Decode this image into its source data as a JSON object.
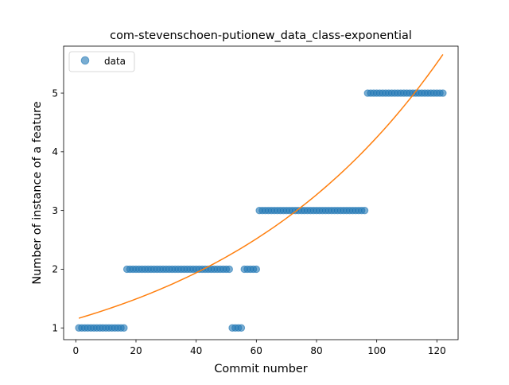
{
  "chart_data": {
    "type": "scatter",
    "title": "com-stevenschoen-putionew_data_class-exponential",
    "xlabel": "Commit number",
    "ylabel": "Number of instance of a feature",
    "xlim": [
      -4.05,
      127.05
    ],
    "ylim": [
      0.8,
      5.8
    ],
    "xticks": [
      0,
      20,
      40,
      60,
      80,
      100,
      120
    ],
    "yticks": [
      1,
      2,
      3,
      4,
      5
    ],
    "legend": {
      "position": "top-left",
      "entries": [
        "data"
      ]
    },
    "grid": false,
    "colors": {
      "data": "#1f77b4",
      "fit": "#ff7f0e"
    },
    "series": [
      {
        "name": "data",
        "kind": "scatter",
        "x": [
          1,
          2,
          3,
          4,
          5,
          6,
          7,
          8,
          9,
          10,
          11,
          12,
          13,
          14,
          15,
          16,
          17,
          18,
          19,
          20,
          21,
          22,
          23,
          24,
          25,
          26,
          27,
          28,
          29,
          30,
          31,
          32,
          33,
          34,
          35,
          36,
          37,
          38,
          39,
          40,
          41,
          42,
          43,
          44,
          45,
          46,
          47,
          48,
          49,
          50,
          51,
          52,
          53,
          54,
          55,
          56,
          57,
          58,
          59,
          60,
          61,
          62,
          63,
          64,
          65,
          66,
          67,
          68,
          69,
          70,
          71,
          72,
          73,
          74,
          75,
          76,
          77,
          78,
          79,
          80,
          81,
          82,
          83,
          84,
          85,
          86,
          87,
          88,
          89,
          90,
          91,
          92,
          93,
          94,
          95,
          96,
          97,
          98,
          99,
          100,
          101,
          102,
          103,
          104,
          105,
          106,
          107,
          108,
          109,
          110,
          111,
          112,
          113,
          114,
          115,
          116,
          117,
          118,
          119,
          120,
          121,
          122
        ],
        "y": [
          1,
          1,
          1,
          1,
          1,
          1,
          1,
          1,
          1,
          1,
          1,
          1,
          1,
          1,
          1,
          1,
          2,
          2,
          2,
          2,
          2,
          2,
          2,
          2,
          2,
          2,
          2,
          2,
          2,
          2,
          2,
          2,
          2,
          2,
          2,
          2,
          2,
          2,
          2,
          2,
          2,
          2,
          2,
          2,
          2,
          2,
          2,
          2,
          2,
          2,
          2,
          1,
          1,
          1,
          1,
          2,
          2,
          2,
          2,
          2,
          3,
          3,
          3,
          3,
          3,
          3,
          3,
          3,
          3,
          3,
          3,
          3,
          3,
          3,
          3,
          3,
          3,
          3,
          3,
          3,
          3,
          3,
          3,
          3,
          3,
          3,
          3,
          3,
          3,
          3,
          3,
          3,
          3,
          3,
          3,
          3,
          5,
          5,
          5,
          5,
          5,
          5,
          5,
          5,
          5,
          5,
          5,
          5,
          5,
          5,
          5,
          5,
          5,
          5,
          5,
          5,
          5,
          5,
          5,
          5,
          5,
          5
        ]
      },
      {
        "name": "",
        "kind": "line",
        "fit": {
          "a": 1.15,
          "b": 0.01306
        },
        "x": [
          1,
          122
        ]
      }
    ]
  }
}
